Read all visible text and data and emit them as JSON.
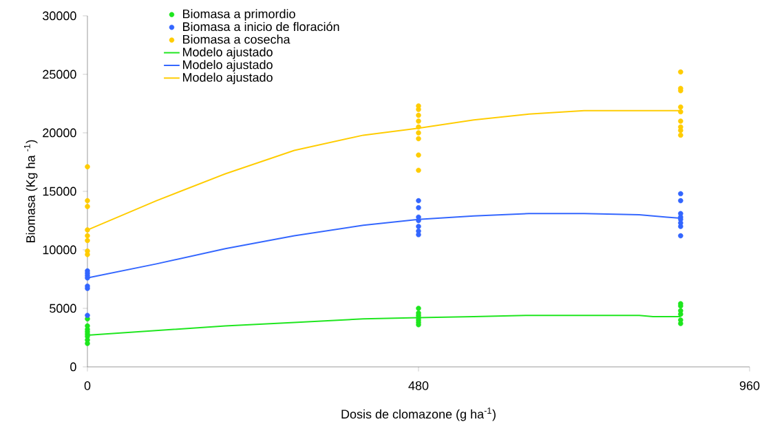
{
  "chart_data": {
    "type": "scatter",
    "xlabel": "Dosis de clomazone (g ha$^{-1}$)",
    "ylabel": "Biomasa (Kg ha $^{-1}$)",
    "xlim": [
      0,
      960
    ],
    "xticks": [
      0,
      480,
      960
    ],
    "ylim": [
      0,
      30000
    ],
    "yticks": [
      0,
      5000,
      10000,
      15000,
      20000,
      25000,
      30000
    ],
    "grid": false,
    "legend": "top left",
    "series": [
      {
        "name": "Biomasa a primordio",
        "marker": "circle",
        "color": "#1ee61e",
        "x": [
          0,
          0,
          0,
          0,
          0,
          0,
          0,
          0,
          480,
          480,
          480,
          480,
          480,
          480,
          480,
          860,
          860,
          860,
          860,
          860,
          860
        ],
        "values": [
          4100,
          3500,
          3200,
          3000,
          2800,
          2600,
          2300,
          2000,
          5000,
          4600,
          4400,
          4200,
          4000,
          3800,
          3600,
          5400,
          5200,
          4800,
          4500,
          4000,
          3700
        ]
      },
      {
        "name": "Biomasa a inicio de floración",
        "marker": "circle",
        "color": "#3366ff",
        "x": [
          0,
          0,
          0,
          0,
          0,
          0,
          0,
          480,
          480,
          480,
          480,
          480,
          480,
          480,
          860,
          860,
          860,
          860,
          860,
          860,
          860,
          860
        ],
        "values": [
          8200,
          8000,
          7800,
          7600,
          6900,
          6700,
          4400,
          14200,
          13600,
          12800,
          12500,
          12000,
          11600,
          11300,
          14800,
          14200,
          13100,
          12800,
          12600,
          12300,
          12000,
          11200
        ]
      },
      {
        "name": "Biomasa a cosecha",
        "marker": "circle",
        "color": "#ffcc00",
        "x": [
          0,
          0,
          0,
          0,
          0,
          0,
          0,
          0,
          480,
          480,
          480,
          480,
          480,
          480,
          480,
          480,
          480,
          860,
          860,
          860,
          860,
          860,
          860,
          860,
          860,
          860
        ],
        "values": [
          17100,
          14200,
          13700,
          11700,
          11200,
          10800,
          9900,
          9600,
          22300,
          22000,
          21500,
          21000,
          20500,
          20000,
          19500,
          18100,
          16800,
          25200,
          23800,
          23600,
          22200,
          21800,
          21000,
          20500,
          20200,
          19800
        ]
      },
      {
        "name": "Modelo ajustado",
        "type": "line",
        "marker": "none",
        "line_style": "solid",
        "color": "#1ee61e",
        "x": [
          0,
          100,
          200,
          300,
          400,
          480,
          560,
          640,
          720,
          800,
          820,
          860
        ],
        "values": [
          2700,
          3100,
          3500,
          3800,
          4100,
          4200,
          4300,
          4400,
          4400,
          4400,
          4300,
          4300
        ]
      },
      {
        "name": "Modelo ajustado",
        "type": "line",
        "marker": "none",
        "line_style": "solid",
        "color": "#3366ff",
        "x": [
          0,
          100,
          200,
          300,
          400,
          480,
          560,
          640,
          720,
          800,
          840,
          860
        ],
        "values": [
          7600,
          8800,
          10100,
          11200,
          12100,
          12600,
          12900,
          13100,
          13100,
          13000,
          12800,
          12700
        ]
      },
      {
        "name": "Modelo ajustado",
        "type": "line",
        "marker": "none",
        "line_style": "solid",
        "color": "#ffcc00",
        "x": [
          0,
          100,
          200,
          300,
          400,
          480,
          560,
          640,
          720,
          800,
          860
        ],
        "values": [
          11700,
          14200,
          16500,
          18500,
          19800,
          20400,
          21100,
          21600,
          21900,
          21900,
          21900
        ]
      }
    ]
  }
}
